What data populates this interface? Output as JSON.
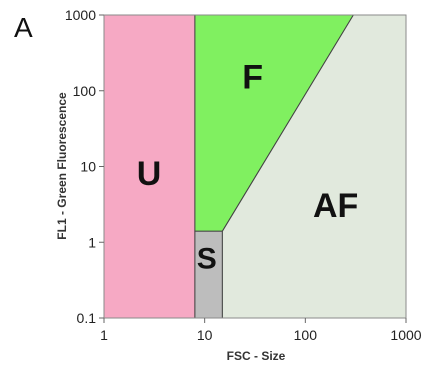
{
  "panel_label": "A",
  "chart_data": {
    "type": "area",
    "title": "",
    "xlabel": "FSC - Size",
    "ylabel": "FL1 - Green Fluorescence",
    "x_scale": "log",
    "y_scale": "log",
    "xlim": [
      1,
      1000
    ],
    "ylim": [
      0.1,
      1000
    ],
    "grid": false,
    "x_ticks": [
      {
        "value": 1,
        "label": "1"
      },
      {
        "value": 10,
        "label": "10"
      },
      {
        "value": 100,
        "label": "100"
      },
      {
        "value": 1000,
        "label": "1000"
      }
    ],
    "y_ticks": [
      {
        "value": 0.1,
        "label": "0.1"
      },
      {
        "value": 1,
        "label": "1"
      },
      {
        "value": 10,
        "label": "10"
      },
      {
        "value": 100,
        "label": "100"
      },
      {
        "value": 1000,
        "label": "1000"
      }
    ],
    "regions": [
      {
        "name": "U",
        "color": "#f6a9c4",
        "polygon": [
          [
            1,
            0.1
          ],
          [
            8,
            0.1
          ],
          [
            8,
            1000
          ],
          [
            1,
            1000
          ]
        ],
        "label_at": [
          2.8,
          8
        ]
      },
      {
        "name": "S",
        "color": "#bdbdbd",
        "polygon": [
          [
            8,
            0.1
          ],
          [
            15,
            0.1
          ],
          [
            15,
            1.4
          ],
          [
            8,
            1.4
          ]
        ],
        "label_at": [
          10.5,
          0.6
        ]
      },
      {
        "name": "F",
        "color": "#80f060",
        "polygon": [
          [
            8,
            1.4
          ],
          [
            15,
            1.4
          ],
          [
            300,
            1000
          ],
          [
            8,
            1000
          ]
        ],
        "label_at": [
          30,
          150
        ]
      },
      {
        "name": "AF",
        "color": "#e1e9dd",
        "polygon": [
          [
            15,
            0.1
          ],
          [
            1000,
            0.1
          ],
          [
            1000,
            1000
          ],
          [
            300,
            1000
          ],
          [
            15,
            1.4
          ]
        ],
        "label_at": [
          200,
          3
        ]
      }
    ]
  }
}
